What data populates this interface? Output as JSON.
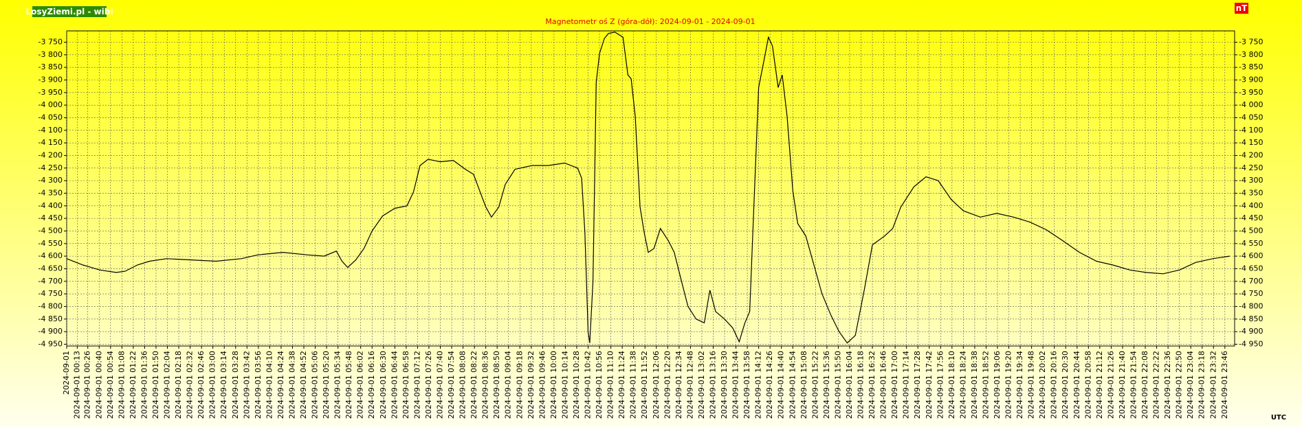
{
  "chart_data": {
    "type": "line",
    "badge": "LosyZiemi.pl - wibi",
    "title": "Magnetometr oś Z (góra-dół): 2024-09-01 - 2024-09-01",
    "unit_label": "nT",
    "x_label": "UTC",
    "grid": true,
    "ylim": [
      -4957,
      -3705
    ],
    "yticks": [
      {
        "value": -3750,
        "label": "-3 750"
      },
      {
        "value": -3800,
        "label": "-3 800"
      },
      {
        "value": -3850,
        "label": "-3 850"
      },
      {
        "value": -3900,
        "label": "-3 900"
      },
      {
        "value": -3950,
        "label": "-3 950"
      },
      {
        "value": -4000,
        "label": "-4 000"
      },
      {
        "value": -4050,
        "label": "-4 050"
      },
      {
        "value": -4100,
        "label": "-4 100"
      },
      {
        "value": -4150,
        "label": "-4 150"
      },
      {
        "value": -4200,
        "label": "-4 200"
      },
      {
        "value": -4250,
        "label": "-4 250"
      },
      {
        "value": -4300,
        "label": "-4 300"
      },
      {
        "value": -4350,
        "label": "-4 350"
      },
      {
        "value": -4400,
        "label": "-4 400"
      },
      {
        "value": -4450,
        "label": "-4 450"
      },
      {
        "value": -4500,
        "label": "-4 500"
      },
      {
        "value": -4550,
        "label": "-4 550"
      },
      {
        "value": -4600,
        "label": "-4 600"
      },
      {
        "value": -4650,
        "label": "-4 650"
      },
      {
        "value": -4700,
        "label": "-4 700"
      },
      {
        "value": -4750,
        "label": "-4 750"
      },
      {
        "value": -4800,
        "label": "-4 800"
      },
      {
        "value": -4850,
        "label": "-4 850"
      },
      {
        "value": -4900,
        "label": "-4 900"
      },
      {
        "value": -4950,
        "label": "-4 950"
      }
    ],
    "xlim": [
      "2024-09-01 00:00",
      "2024-09-01 23:58"
    ],
    "xticks": [
      "2024-09-01",
      "2024-09-01 00:13",
      "2024-09-01 00:26",
      "2024-09-01 00:40",
      "2024-09-01 00:54",
      "2024-09-01 01:08",
      "2024-09-01 01:22",
      "2024-09-01 01:36",
      "2024-09-01 01:50",
      "2024-09-01 02:04",
      "2024-09-01 02:18",
      "2024-09-01 02:32",
      "2024-09-01 02:46",
      "2024-09-01 03:00",
      "2024-09-01 03:14",
      "2024-09-01 03:28",
      "2024-09-01 03:42",
      "2024-09-01 03:56",
      "2024-09-01 04:10",
      "2024-09-01 04:24",
      "2024-09-01 04:38",
      "2024-09-01 04:52",
      "2024-09-01 05:06",
      "2024-09-01 05:20",
      "2024-09-01 05:34",
      "2024-09-01 05:48",
      "2024-09-01 06:02",
      "2024-09-01 06:16",
      "2024-09-01 06:30",
      "2024-09-01 06:44",
      "2024-09-01 06:58",
      "2024-09-01 07:12",
      "2024-09-01 07:26",
      "2024-09-01 07:40",
      "2024-09-01 07:54",
      "2024-09-01 08:08",
      "2024-09-01 08:22",
      "2024-09-01 08:36",
      "2024-09-01 08:50",
      "2024-09-01 09:04",
      "2024-09-01 09:18",
      "2024-09-01 09:32",
      "2024-09-01 09:46",
      "2024-09-01 10:00",
      "2024-09-01 10:14",
      "2024-09-01 10:28",
      "2024-09-01 10:42",
      "2024-09-01 10:56",
      "2024-09-01 11:10",
      "2024-09-01 11:24",
      "2024-09-01 11:38",
      "2024-09-01 11:52",
      "2024-09-01 12:06",
      "2024-09-01 12:20",
      "2024-09-01 12:34",
      "2024-09-01 12:48",
      "2024-09-01 13:02",
      "2024-09-01 13:16",
      "2024-09-01 13:30",
      "2024-09-01 13:44",
      "2024-09-01 13:58",
      "2024-09-01 14:12",
      "2024-09-01 14:26",
      "2024-09-01 14:40",
      "2024-09-01 14:54",
      "2024-09-01 15:08",
      "2024-09-01 15:22",
      "2024-09-01 15:36",
      "2024-09-01 15:50",
      "2024-09-01 16:04",
      "2024-09-01 16:18",
      "2024-09-01 16:32",
      "2024-09-01 16:46",
      "2024-09-01 17:00",
      "2024-09-01 17:14",
      "2024-09-01 17:28",
      "2024-09-01 17:42",
      "2024-09-01 17:56",
      "2024-09-01 18:10",
      "2024-09-01 18:24",
      "2024-09-01 18:38",
      "2024-09-01 18:52",
      "2024-09-01 19:06",
      "2024-09-01 19:20",
      "2024-09-01 19:34",
      "2024-09-01 19:48",
      "2024-09-01 20:02",
      "2024-09-01 20:16",
      "2024-09-01 20:30",
      "2024-09-01 20:44",
      "2024-09-01 20:58",
      "2024-09-01 21:12",
      "2024-09-01 21:26",
      "2024-09-01 21:40",
      "2024-09-01 21:54",
      "2024-09-01 22:08",
      "2024-09-01 22:22",
      "2024-09-01 22:36",
      "2024-09-01 22:50",
      "2024-09-01 23:04",
      "2024-09-01 23:18",
      "2024-09-01 23:32",
      "2024-09-01 23:46"
    ],
    "series": [
      {
        "color": "#000000",
        "x": [
          "2024-09-01 00:00",
          "2024-09-01 00:20",
          "2024-09-01 00:41",
          "2024-09-01 01:01",
          "2024-09-01 01:12",
          "2024-09-01 01:27",
          "2024-09-01 01:42",
          "2024-09-01 02:03",
          "2024-09-01 02:33",
          "2024-09-01 03:04",
          "2024-09-01 03:35",
          "2024-09-01 03:55",
          "2024-09-01 04:26",
          "2024-09-01 04:57",
          "2024-09-01 05:17",
          "2024-09-01 05:32",
          "2024-09-01 05:39",
          "2024-09-01 05:46",
          "2024-09-01 05:56",
          "2024-09-01 06:06",
          "2024-09-01 06:16",
          "2024-09-01 06:29",
          "2024-09-01 06:44",
          "2024-09-01 06:59",
          "2024-09-01 07:07",
          "2024-09-01 07:15",
          "2024-09-01 07:25",
          "2024-09-01 07:40",
          "2024-09-01 07:56",
          "2024-09-01 08:11",
          "2024-09-01 08:21",
          "2024-09-01 08:29",
          "2024-09-01 08:36",
          "2024-09-01 08:43",
          "2024-09-01 08:52",
          "2024-09-01 09:00",
          "2024-09-01 09:12",
          "2024-09-01 09:33",
          "2024-09-01 09:53",
          "2024-09-01 10:13",
          "2024-09-01 10:29",
          "2024-09-01 10:34",
          "2024-09-01 10:38",
          "2024-09-01 10:42",
          "2024-09-01 10:44",
          "2024-09-01 10:48",
          "2024-09-01 10:52",
          "2024-09-01 10:56",
          "2024-09-01 11:02",
          "2024-09-01 11:07",
          "2024-09-01 11:15",
          "2024-09-01 11:25",
          "2024-09-01 11:31",
          "2024-09-01 11:35",
          "2024-09-01 11:40",
          "2024-09-01 11:46",
          "2024-09-01 11:51",
          "2024-09-01 11:56",
          "2024-09-01 12:03",
          "2024-09-01 12:11",
          "2024-09-01 12:21",
          "2024-09-01 12:28",
          "2024-09-01 12:37",
          "2024-09-01 12:45",
          "2024-09-01 12:55",
          "2024-09-01 13:05",
          "2024-09-01 13:12",
          "2024-09-01 13:19",
          "2024-09-01 13:30",
          "2024-09-01 13:40",
          "2024-09-01 13:48",
          "2024-09-01 13:55",
          "2024-09-01 14:01",
          "2024-09-01 14:06",
          "2024-09-01 14:12",
          "2024-09-01 14:19",
          "2024-09-01 14:24",
          "2024-09-01 14:29",
          "2024-09-01 14:36",
          "2024-09-01 14:41",
          "2024-09-01 14:47",
          "2024-09-01 14:54",
          "2024-09-01 15:00",
          "2024-09-01 15:10",
          "2024-09-01 15:20",
          "2024-09-01 15:30",
          "2024-09-01 15:41",
          "2024-09-01 15:51",
          "2024-09-01 16:01",
          "2024-09-01 16:11",
          "2024-09-01 16:22",
          "2024-09-01 16:32",
          "2024-09-01 16:47",
          "2024-09-01 16:57",
          "2024-09-01 17:07",
          "2024-09-01 17:23",
          "2024-09-01 17:38",
          "2024-09-01 17:53",
          "2024-09-01 18:09",
          "2024-09-01 18:24",
          "2024-09-01 18:45",
          "2024-09-01 19:05",
          "2024-09-01 19:26",
          "2024-09-01 19:46",
          "2024-09-01 20:06",
          "2024-09-01 20:27",
          "2024-09-01 20:47",
          "2024-09-01 21:08",
          "2024-09-01 21:28",
          "2024-09-01 21:49",
          "2024-09-01 22:09",
          "2024-09-01 22:30",
          "2024-09-01 22:50",
          "2024-09-01 23:10",
          "2024-09-01 23:31",
          "2024-09-01 23:52"
        ],
        "values": [
          -4610,
          -4635,
          -4655,
          -4665,
          -4660,
          -4635,
          -4620,
          -4610,
          -4615,
          -4620,
          -4610,
          -4595,
          -4585,
          -4595,
          -4600,
          -4580,
          -4620,
          -4645,
          -4615,
          -4570,
          -4500,
          -4440,
          -4410,
          -4400,
          -4345,
          -4240,
          -4215,
          -4225,
          -4220,
          -4255,
          -4275,
          -4345,
          -4405,
          -4445,
          -4405,
          -4315,
          -4255,
          -4240,
          -4240,
          -4230,
          -4250,
          -4290,
          -4505,
          -4900,
          -4945,
          -4700,
          -3910,
          -3795,
          -3735,
          -3715,
          -3710,
          -3730,
          -3880,
          -3895,
          -4045,
          -4405,
          -4505,
          -4585,
          -4570,
          -4490,
          -4540,
          -4585,
          -4700,
          -4800,
          -4850,
          -4865,
          -4735,
          -4820,
          -4850,
          -4885,
          -4940,
          -4865,
          -4820,
          -4405,
          -3930,
          -3815,
          -3730,
          -3765,
          -3930,
          -3880,
          -4045,
          -4340,
          -4470,
          -4520,
          -4635,
          -4750,
          -4835,
          -4900,
          -4945,
          -4915,
          -4735,
          -4555,
          -4520,
          -4490,
          -4405,
          -4325,
          -4285,
          -4300,
          -4375,
          -4420,
          -4445,
          -4430,
          -4445,
          -4465,
          -4495,
          -4540,
          -4585,
          -4620,
          -4635,
          -4655,
          -4665,
          -4670,
          -4655,
          -4625,
          -4610,
          -4600
        ]
      }
    ]
  }
}
